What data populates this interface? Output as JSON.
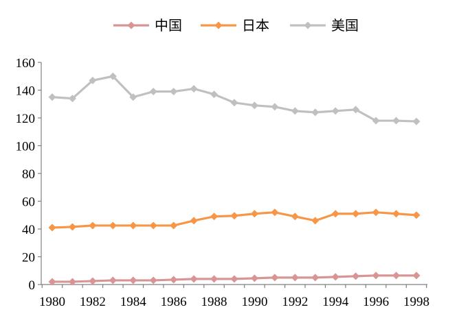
{
  "chart_data": {
    "type": "line",
    "title": "",
    "xlabel": "",
    "ylabel": "",
    "x": [
      1980,
      1981,
      1982,
      1983,
      1984,
      1985,
      1986,
      1987,
      1988,
      1989,
      1990,
      1991,
      1992,
      1993,
      1994,
      1995,
      1996,
      1997,
      1998
    ],
    "x_tick_labels": [
      "1980",
      "1982",
      "1984",
      "1986",
      "1988",
      "1990",
      "1992",
      "1994",
      "1996",
      "1998"
    ],
    "y_tick_labels": [
      "0",
      "20",
      "40",
      "60",
      "80",
      "100",
      "120",
      "140",
      "160"
    ],
    "ylim": [
      0,
      160
    ],
    "grid": false,
    "legend_position": "top",
    "series": [
      {
        "name": "中国",
        "color": "#d99594",
        "marker": "diamond",
        "values": [
          2,
          2,
          2.5,
          3,
          3,
          3,
          3.5,
          4,
          4,
          4,
          4.5,
          5,
          5,
          5,
          5.5,
          6,
          6.5,
          6.5,
          6.5
        ]
      },
      {
        "name": "日本",
        "color": "#f79646",
        "marker": "diamond",
        "values": [
          41,
          41.5,
          42.5,
          42.5,
          42.5,
          42.5,
          42.5,
          46,
          49,
          49.5,
          51,
          52,
          49,
          46,
          51,
          51,
          52,
          51,
          50
        ]
      },
      {
        "name": "美国",
        "color": "#c0c0c0",
        "marker": "diamond",
        "values": [
          135,
          134,
          147,
          150,
          135,
          139,
          139,
          141,
          137,
          131,
          129,
          128,
          125,
          124,
          125,
          126,
          118,
          118,
          117.5
        ]
      }
    ]
  }
}
